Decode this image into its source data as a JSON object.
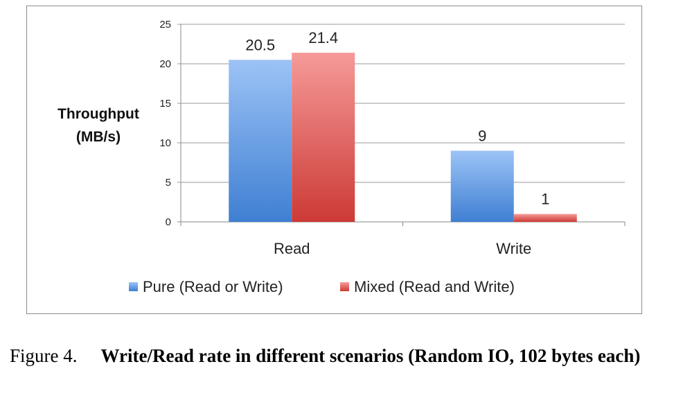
{
  "chart_data": {
    "type": "bar",
    "categories": [
      "Read",
      "Write"
    ],
    "series": [
      {
        "name": "Pure (Read or Write)",
        "values": [
          20.5,
          9
        ],
        "color": "#5b95dd"
      },
      {
        "name": "Mixed (Read and Write)",
        "values": [
          21.4,
          1
        ],
        "color": "#de5a58"
      }
    ],
    "ylabel": [
      "Throughput",
      "(MB/s)"
    ],
    "ylim": [
      0,
      25
    ],
    "yticks": [
      0,
      5,
      10,
      15,
      20,
      25
    ],
    "grid": true,
    "legend": "bottom"
  },
  "caption": {
    "number": "Figure 4.",
    "text": "Write/Read rate in different scenarios (Random IO, 102 bytes each)"
  }
}
